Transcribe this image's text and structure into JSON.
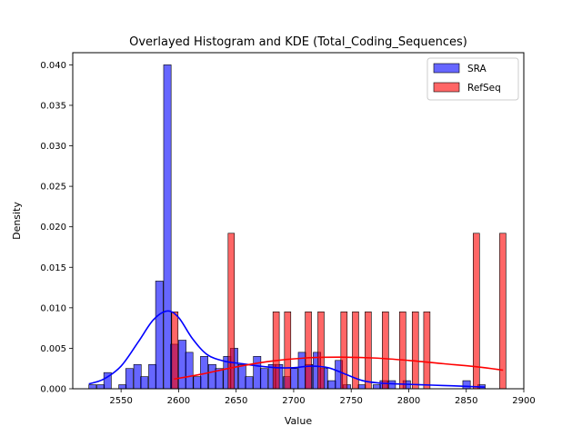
{
  "chart_data": {
    "type": "histogram",
    "title": "Overlayed Histogram and KDE (Total_Coding_Sequences)",
    "xlabel": "Value",
    "ylabel": "Density",
    "xlim": [
      2508,
      2900
    ],
    "ylim": [
      0,
      0.0415
    ],
    "xticks": [
      2550,
      2600,
      2650,
      2700,
      2750,
      2800,
      2850,
      2900
    ],
    "yticks": [
      0.0,
      0.005,
      0.01,
      0.015,
      0.02,
      0.025,
      0.03,
      0.035,
      0.04
    ],
    "ytick_labels": [
      "0.000",
      "0.005",
      "0.010",
      "0.015",
      "0.020",
      "0.025",
      "0.030",
      "0.035",
      "0.040"
    ],
    "legend_position": "top-right",
    "series": [
      {
        "name": "SRA",
        "fill": "#0000ff",
        "fill_opacity": 0.6,
        "line_color": "#0000ff",
        "bin_width": 6.5,
        "bins": [
          [
            2522,
            0.0005
          ],
          [
            2529,
            0.0005
          ],
          [
            2535,
            0.002
          ],
          [
            2548,
            0.0005
          ],
          [
            2554,
            0.0025
          ],
          [
            2561,
            0.003
          ],
          [
            2567,
            0.0015
          ],
          [
            2574,
            0.003
          ],
          [
            2580,
            0.0133
          ],
          [
            2587,
            0.04
          ],
          [
            2593,
            0.0055
          ],
          [
            2600,
            0.006
          ],
          [
            2606,
            0.0045
          ],
          [
            2613,
            0.0015
          ],
          [
            2619,
            0.004
          ],
          [
            2626,
            0.003
          ],
          [
            2632,
            0.0025
          ],
          [
            2639,
            0.004
          ],
          [
            2645,
            0.005
          ],
          [
            2652,
            0.003
          ],
          [
            2658,
            0.0015
          ],
          [
            2665,
            0.004
          ],
          [
            2671,
            0.0025
          ],
          [
            2678,
            0.003
          ],
          [
            2684,
            0.003
          ],
          [
            2691,
            0.0015
          ],
          [
            2697,
            0.0025
          ],
          [
            2704,
            0.0045
          ],
          [
            2710,
            0.003
          ],
          [
            2717,
            0.0045
          ],
          [
            2723,
            0.0025
          ],
          [
            2730,
            0.001
          ],
          [
            2736,
            0.0035
          ],
          [
            2743,
            0.0005
          ],
          [
            2756,
            0.0005
          ],
          [
            2769,
            0.0005
          ],
          [
            2775,
            0.001
          ],
          [
            2782,
            0.001
          ],
          [
            2795,
            0.001
          ],
          [
            2847,
            0.001
          ],
          [
            2860,
            0.0005
          ]
        ],
        "kde": [
          [
            2522,
            0.0006
          ],
          [
            2535,
            0.0012
          ],
          [
            2550,
            0.0028
          ],
          [
            2565,
            0.0058
          ],
          [
            2578,
            0.0085
          ],
          [
            2590,
            0.0096
          ],
          [
            2600,
            0.0088
          ],
          [
            2612,
            0.0062
          ],
          [
            2625,
            0.0042
          ],
          [
            2640,
            0.0034
          ],
          [
            2655,
            0.0031
          ],
          [
            2670,
            0.0028
          ],
          [
            2685,
            0.0026
          ],
          [
            2700,
            0.0026
          ],
          [
            2715,
            0.0028
          ],
          [
            2730,
            0.0026
          ],
          [
            2745,
            0.0018
          ],
          [
            2760,
            0.001
          ],
          [
            2775,
            0.0007
          ],
          [
            2790,
            0.0006
          ],
          [
            2810,
            0.0005
          ],
          [
            2830,
            0.0004
          ],
          [
            2850,
            0.0003
          ],
          [
            2866,
            0.0002
          ]
        ]
      },
      {
        "name": "RefSeq",
        "fill": "#ff0000",
        "fill_opacity": 0.6,
        "line_color": "#ff0000",
        "bin_width": 5.5,
        "bins": [
          [
            2594,
            0.0095
          ],
          [
            2643,
            0.0192
          ],
          [
            2682,
            0.0095
          ],
          [
            2692,
            0.0095
          ],
          [
            2710,
            0.0095
          ],
          [
            2721,
            0.0095
          ],
          [
            2741,
            0.0095
          ],
          [
            2751,
            0.0095
          ],
          [
            2762,
            0.0095
          ],
          [
            2777,
            0.0095
          ],
          [
            2792,
            0.0095
          ],
          [
            2803,
            0.0095
          ],
          [
            2813,
            0.0095
          ],
          [
            2856,
            0.0192
          ],
          [
            2879,
            0.0192
          ]
        ],
        "kde": [
          [
            2596,
            0.0012
          ],
          [
            2620,
            0.0018
          ],
          [
            2650,
            0.0027
          ],
          [
            2680,
            0.0034
          ],
          [
            2710,
            0.0038
          ],
          [
            2740,
            0.0039
          ],
          [
            2770,
            0.0038
          ],
          [
            2800,
            0.0035
          ],
          [
            2830,
            0.0031
          ],
          [
            2860,
            0.0027
          ],
          [
            2882,
            0.0023
          ]
        ]
      }
    ]
  }
}
